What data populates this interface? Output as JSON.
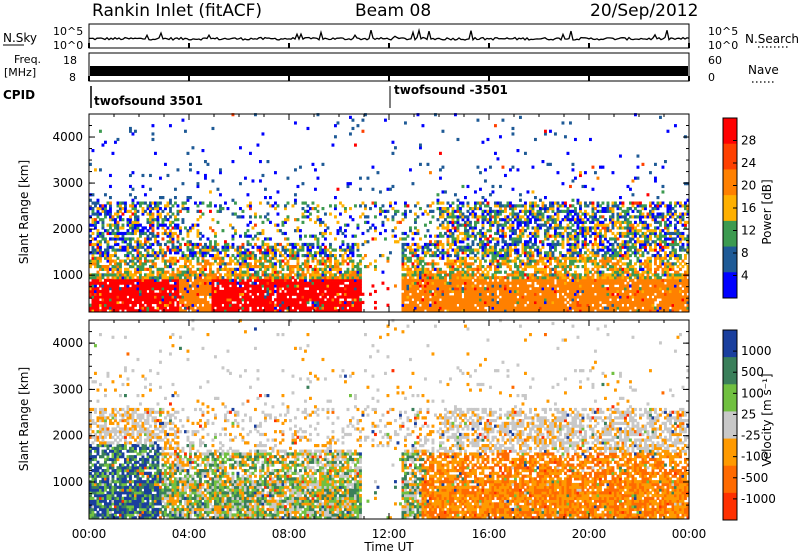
{
  "header": {
    "station": "Rankin Inlet (fitACF)",
    "beam": "Beam 08",
    "date": "20/Sep/2012"
  },
  "noise_panel": {
    "left_label": "N.Sky",
    "left_ticks": [
      "10^5",
      "10^0"
    ],
    "right_ticks": [
      "10^5",
      "10^0"
    ],
    "right_label": "N.Search"
  },
  "freq_panel": {
    "left_label_1": "Freq.",
    "left_label_2": "[MHz]",
    "left_ticks": [
      "18",
      "8"
    ],
    "right_ticks": [
      "60",
      "0"
    ],
    "right_label": "Nave"
  },
  "cpid_panel": {
    "label": "CPID",
    "segments": [
      "twofsound 3501",
      "twofsound -3501"
    ]
  },
  "chart_data": [
    {
      "type": "heatmap",
      "ylabel": "Slant Range [km]",
      "y_ticks": [
        "4000",
        "3000",
        "2000",
        "1000"
      ],
      "colorbar": {
        "label": "Power [dB]",
        "ticks": [
          "28",
          "24",
          "20",
          "16",
          "12",
          "8",
          "4"
        ],
        "colors": [
          "#ff0000",
          "#ff4000",
          "#ff8000",
          "#ffb000",
          "#3c9a50",
          "#1e5a96",
          "#0000ff"
        ]
      }
    },
    {
      "type": "heatmap",
      "ylabel": "Slant Range [km]",
      "y_ticks": [
        "4000",
        "3000",
        "2000",
        "1000"
      ],
      "colorbar": {
        "label": "Velocity [m s⁻¹]",
        "ticks": [
          "1000",
          "500",
          "100",
          "25",
          "-25",
          "-100",
          "-500",
          "-1000"
        ],
        "colors": [
          "#1a3f9e",
          "#3a7f5a",
          "#70c040",
          "#c8c8c8",
          "#ff9a00",
          "#ff6a00",
          "#ff3000"
        ]
      }
    }
  ],
  "x_axis": {
    "label": "Time UT",
    "ticks": [
      "00:00",
      "04:00",
      "08:00",
      "12:00",
      "16:00",
      "20:00",
      "00:00"
    ]
  }
}
